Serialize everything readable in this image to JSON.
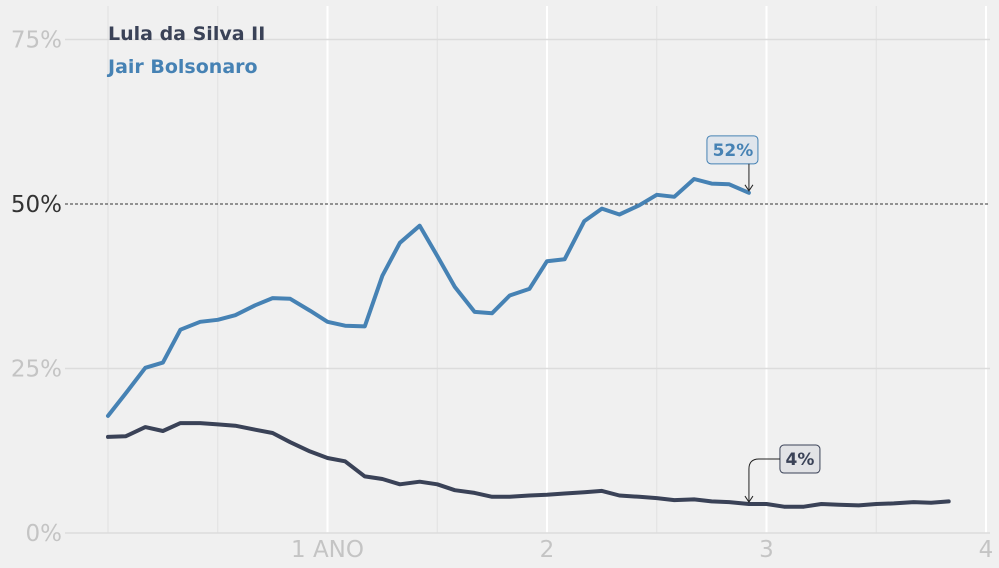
{
  "chart_data": {
    "type": "line",
    "grid": true,
    "ylim": [
      0,
      80
    ],
    "xlim": [
      0.0,
      4.0
    ],
    "yticks": [
      {
        "value": 0,
        "label": "0%"
      },
      {
        "value": 25,
        "label": "25%"
      },
      {
        "value": 50,
        "label": "50%"
      },
      {
        "value": 75,
        "label": "75%"
      }
    ],
    "xticks": [
      {
        "value": 1,
        "label": "1 ANO"
      },
      {
        "value": 2,
        "label": "2"
      },
      {
        "value": 3,
        "label": "3"
      },
      {
        "value": 4,
        "label": "4"
      }
    ],
    "reference_line": 50,
    "series": [
      {
        "name": "Jair Bolsonaro",
        "color": "#4682b4",
        "points": [
          [
            0.0,
            17.8
          ],
          [
            0.08,
            21.2
          ],
          [
            0.17,
            25.1
          ],
          [
            0.25,
            25.9
          ],
          [
            0.33,
            30.9
          ],
          [
            0.42,
            32.1
          ],
          [
            0.5,
            32.4
          ],
          [
            0.58,
            33.1
          ],
          [
            0.67,
            34.6
          ],
          [
            0.75,
            35.7
          ],
          [
            0.83,
            35.6
          ],
          [
            0.92,
            33.8
          ],
          [
            1.0,
            32.1
          ],
          [
            1.08,
            31.5
          ],
          [
            1.17,
            31.4
          ],
          [
            1.25,
            39.1
          ],
          [
            1.33,
            44.1
          ],
          [
            1.42,
            46.7
          ],
          [
            1.5,
            42.1
          ],
          [
            1.58,
            37.4
          ],
          [
            1.67,
            33.6
          ],
          [
            1.75,
            33.4
          ],
          [
            1.83,
            36.1
          ],
          [
            1.92,
            37.1
          ],
          [
            2.0,
            41.3
          ],
          [
            2.08,
            41.6
          ],
          [
            2.17,
            47.4
          ],
          [
            2.25,
            49.3
          ],
          [
            2.33,
            48.4
          ],
          [
            2.42,
            49.8
          ],
          [
            2.5,
            51.4
          ],
          [
            2.58,
            51.1
          ],
          [
            2.67,
            53.8
          ],
          [
            2.75,
            53.1
          ],
          [
            2.83,
            53.0
          ],
          [
            2.92,
            51.7
          ]
        ]
      },
      {
        "name": "Lula da Silva II",
        "color": "#3a4257",
        "points": [
          [
            0.0,
            14.6
          ],
          [
            0.08,
            14.7
          ],
          [
            0.17,
            16.1
          ],
          [
            0.25,
            15.5
          ],
          [
            0.33,
            16.7
          ],
          [
            0.42,
            16.7
          ],
          [
            0.5,
            16.5
          ],
          [
            0.58,
            16.3
          ],
          [
            0.67,
            15.7
          ],
          [
            0.75,
            15.2
          ],
          [
            0.83,
            13.8
          ],
          [
            0.92,
            12.4
          ],
          [
            1.0,
            11.4
          ],
          [
            1.08,
            10.9
          ],
          [
            1.17,
            8.6
          ],
          [
            1.25,
            8.2
          ],
          [
            1.33,
            7.4
          ],
          [
            1.42,
            7.8
          ],
          [
            1.5,
            7.4
          ],
          [
            1.58,
            6.5
          ],
          [
            1.67,
            6.1
          ],
          [
            1.75,
            5.5
          ],
          [
            1.83,
            5.5
          ],
          [
            1.92,
            5.7
          ],
          [
            2.0,
            5.8
          ],
          [
            2.08,
            6.0
          ],
          [
            2.17,
            6.2
          ],
          [
            2.25,
            6.4
          ],
          [
            2.33,
            5.7
          ],
          [
            2.42,
            5.5
          ],
          [
            2.5,
            5.3
          ],
          [
            2.58,
            5.0
          ],
          [
            2.67,
            5.1
          ],
          [
            2.75,
            4.8
          ],
          [
            2.83,
            4.7
          ],
          [
            2.92,
            4.4
          ],
          [
            3.0,
            4.4
          ],
          [
            3.08,
            4.0
          ],
          [
            3.17,
            4.0
          ],
          [
            3.25,
            4.4
          ],
          [
            3.33,
            4.3
          ],
          [
            3.42,
            4.2
          ],
          [
            3.5,
            4.4
          ],
          [
            3.58,
            4.5
          ],
          [
            3.67,
            4.7
          ],
          [
            3.75,
            4.6
          ],
          [
            3.83,
            4.8
          ]
        ]
      }
    ],
    "annotations": [
      {
        "series": 0,
        "text": "52%",
        "x": 2.92,
        "y": 51.7
      },
      {
        "series": 1,
        "text": "4%",
        "x": 2.92,
        "y": 4.4
      }
    ],
    "legend": {
      "placement": "top-left",
      "entries": [
        "Lula da Silva II",
        "Jair Bolsonaro"
      ]
    }
  }
}
